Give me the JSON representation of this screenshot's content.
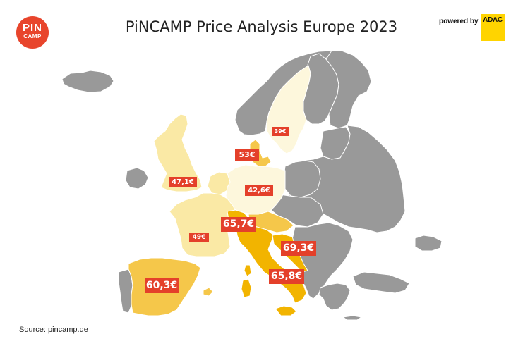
{
  "header": {
    "title": "PiNCAMP Price Analysis Europe 2023",
    "powered_by": "powered by",
    "partner": "ADAC"
  },
  "logo": {
    "line1": "PIN",
    "line2": "CAMP"
  },
  "footer": {
    "source": "Source: pincamp.de"
  },
  "colors": {
    "background": "#ffffff",
    "non_study_country": "#999999",
    "borders": "#ffffff",
    "price_tier_low": "#fdf7dc",
    "price_tier_mid": "#fae9a5",
    "price_tier_high": "#f5c74a",
    "price_tier_top": "#f2b400",
    "label_background": "#e4402a",
    "label_text": "#ffffff",
    "logo": "#e8452c",
    "adac_yellow": "#ffd400"
  },
  "price_labels": [
    {
      "country": "Sweden",
      "price": "39€",
      "tier": "low"
    },
    {
      "country": "Denmark",
      "price": "53€",
      "tier": "high"
    },
    {
      "country": "United Kingdom",
      "price": "47,1€",
      "tier": "mid"
    },
    {
      "country": "Germany",
      "price": "42,6€",
      "tier": "low"
    },
    {
      "country": "France",
      "price": "49€",
      "tier": "mid"
    },
    {
      "country": "Switzerland",
      "price": "65,7€",
      "tier": "top"
    },
    {
      "country": "Croatia",
      "price": "69,3€",
      "tier": "top"
    },
    {
      "country": "Spain",
      "price": "60,3€",
      "tier": "high"
    },
    {
      "country": "Italy",
      "price": "65,8€",
      "tier": "top"
    }
  ]
}
